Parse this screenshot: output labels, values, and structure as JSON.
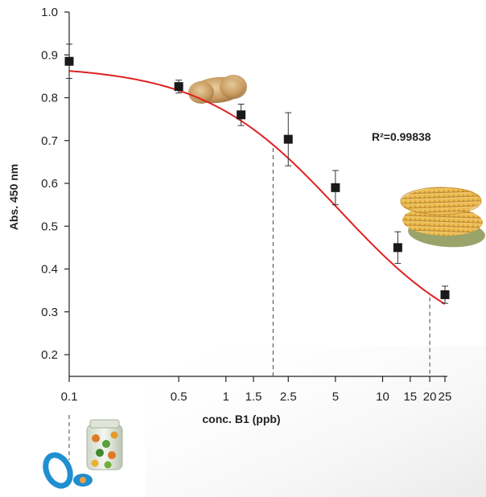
{
  "chart_data": {
    "type": "scatter",
    "xlabel": "conc. B1 (ppb)",
    "ylabel": "Abs. 450 nm",
    "x_scale": "log",
    "xlim": [
      0.1,
      25
    ],
    "ylim": [
      0.15,
      1.0
    ],
    "x_ticks": [
      {
        "value": 0.1,
        "label": "0.1"
      },
      {
        "value": 0.5,
        "label": "0.5"
      },
      {
        "value": 1,
        "label": "1"
      },
      {
        "value": 1.5,
        "label": "1.5"
      },
      {
        "value": 2.5,
        "label": "2.5"
      },
      {
        "value": 5,
        "label": "5"
      },
      {
        "value": 10,
        "label": "10"
      },
      {
        "value": 15,
        "label": "15"
      },
      {
        "value": 20,
        "label": "20"
      },
      {
        "value": 25,
        "label": "25"
      }
    ],
    "y_ticks": [
      {
        "value": 0.2,
        "label": "0.2"
      },
      {
        "value": 0.3,
        "label": "0.3"
      },
      {
        "value": 0.4,
        "label": "0.4"
      },
      {
        "value": 0.5,
        "label": "0.5"
      },
      {
        "value": 0.6,
        "label": "0.6"
      },
      {
        "value": 0.7,
        "label": "0.7"
      },
      {
        "value": 0.8,
        "label": "0.8"
      },
      {
        "value": 0.9,
        "label": "0.9"
      },
      {
        "value": 1.0,
        "label": "1.0"
      }
    ],
    "points": [
      {
        "x": 0.1,
        "y": 0.885,
        "err": 0.04
      },
      {
        "x": 0.5,
        "y": 0.826,
        "err": 0.015
      },
      {
        "x": 1.25,
        "y": 0.76,
        "err": 0.025
      },
      {
        "x": 2.5,
        "y": 0.703,
        "err": 0.062
      },
      {
        "x": 5,
        "y": 0.59,
        "err": 0.04
      },
      {
        "x": 12.5,
        "y": 0.45,
        "err": 0.037
      },
      {
        "x": 25,
        "y": 0.34,
        "err": 0.02
      }
    ],
    "fit_curve": {
      "A": 0.875,
      "D": 0.2,
      "C": 5.3,
      "B": 1.0,
      "color": "#e02020"
    },
    "reference_lines_x": [
      2,
      20
    ],
    "annotation": "R²=0.99838",
    "marker_color": "#1a1a1a",
    "grid": false,
    "images": [
      "peanut",
      "corn-cobs",
      "jar-of-beans",
      "blue-pacifier"
    ]
  }
}
